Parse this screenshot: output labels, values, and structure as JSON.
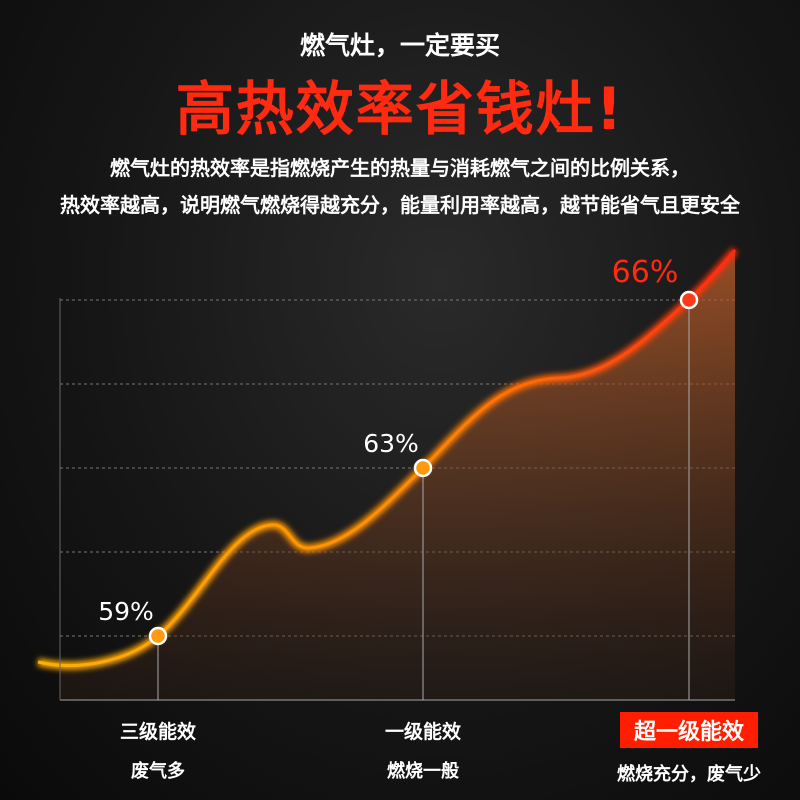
{
  "header": {
    "subtitle": "燃气灶，一定要买",
    "title": "高热效率省钱灶!"
  },
  "description": [
    "燃气灶的热效率是指燃烧产生的热量与消耗燃气之间的比例关系，",
    "热效率越高，说明燃气燃烧得越充分，能量利用率越高，越节能省气且更安全"
  ],
  "chart_data": {
    "type": "line",
    "categories": [
      "三级能效",
      "一级能效",
      "超一级能效"
    ],
    "values": [
      59,
      63,
      66
    ],
    "data_labels": [
      "59%",
      "63%",
      "66%"
    ],
    "sublabels": [
      "废气多",
      "燃烧一般",
      "燃烧充分，废气少"
    ],
    "grid": true,
    "colors": {
      "line_start": "#ffb000",
      "line_end": "#ff2a10",
      "highlight": "#ff1e00"
    }
  }
}
